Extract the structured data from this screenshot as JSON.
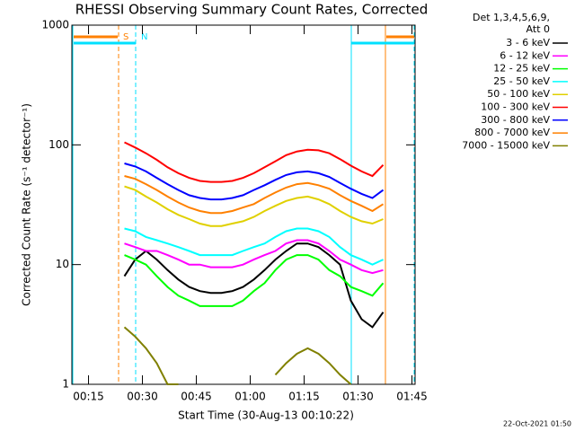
{
  "chart_data": {
    "type": "line",
    "title": "RHESSI Observing Summary Count Rates, Corrected",
    "x_label": "Start Time (30-Aug-13 00:10:22)",
    "y_label": "Corrected Count Rate (s⁻¹ detector⁻¹)",
    "legend_header": [
      "Det 1,3,4,5,6,9,",
      "Att 0"
    ],
    "annotations": [
      {
        "text": "S",
        "color": "#ff8000"
      },
      {
        "text": "N",
        "color": "#00e0ff"
      }
    ],
    "timestamp": "22-Oct-2021 01:50",
    "log_y": true,
    "xlim": [
      10.37,
      105.87
    ],
    "ylim": [
      1,
      1000
    ],
    "xticks": [
      {
        "value": 15,
        "label": "00:15"
      },
      {
        "value": 30,
        "label": "00:30"
      },
      {
        "value": 45,
        "label": "00:45"
      },
      {
        "value": 60,
        "label": "01:00"
      },
      {
        "value": 75,
        "label": "01:15"
      },
      {
        "value": 90,
        "label": "01:30"
      },
      {
        "value": 105,
        "label": "01:45"
      }
    ],
    "yticks": [
      1,
      10,
      100,
      1000
    ],
    "x": [
      25,
      28,
      31,
      34,
      37,
      40,
      43,
      46,
      49,
      52,
      55,
      58,
      61,
      64,
      67,
      70,
      73,
      76,
      79,
      82,
      85,
      88,
      91,
      94,
      97
    ],
    "series": [
      {
        "name": "3 - 6 keV",
        "color": "#000000",
        "values": [
          8,
          11,
          13,
          11,
          9,
          7.5,
          6.5,
          6,
          5.8,
          5.8,
          6,
          6.5,
          7.5,
          9,
          11,
          13,
          15,
          15,
          14,
          12,
          10,
          5,
          3.5,
          3,
          4
        ]
      },
      {
        "name": "6 - 12 keV",
        "color": "#ff00ff",
        "values": [
          15,
          14,
          13,
          13,
          12,
          11,
          10,
          10,
          9.5,
          9.5,
          9.5,
          10,
          11,
          12,
          13,
          15,
          16,
          16,
          15,
          13,
          11,
          10,
          9,
          8.5,
          9
        ]
      },
      {
        "name": "12 - 25 keV",
        "color": "#00ff00",
        "values": [
          12,
          11,
          10,
          8,
          6.5,
          5.5,
          5,
          4.5,
          4.5,
          4.5,
          4.5,
          5,
          6,
          7,
          9,
          11,
          12,
          12,
          11,
          9,
          8,
          6.5,
          6,
          5.5,
          7
        ]
      },
      {
        "name": "25 - 50 keV",
        "color": "#00ffff",
        "values": [
          20,
          19,
          17,
          16,
          15,
          14,
          13,
          12,
          12,
          12,
          12,
          13,
          14,
          15,
          17,
          19,
          20,
          20,
          19,
          17,
          14,
          12,
          11,
          10,
          11
        ]
      },
      {
        "name": "50 - 100 keV",
        "color": "#e0d000",
        "values": [
          45,
          42,
          37,
          33,
          29,
          26,
          24,
          22,
          21,
          21,
          22,
          23,
          25,
          28,
          31,
          34,
          36,
          37,
          35,
          32,
          28,
          25,
          23,
          22,
          24
        ]
      },
      {
        "name": "100 - 300 keV",
        "color": "#ff0000",
        "values": [
          105,
          95,
          85,
          75,
          65,
          58,
          53,
          50,
          49,
          49,
          50,
          53,
          58,
          65,
          73,
          82,
          88,
          91,
          90,
          85,
          76,
          67,
          60,
          55,
          68
        ]
      },
      {
        "name": "300 - 800 keV",
        "color": "#0000ff",
        "values": [
          70,
          66,
          60,
          53,
          47,
          42,
          38,
          36,
          35,
          35,
          36,
          38,
          42,
          46,
          51,
          56,
          59,
          60,
          58,
          54,
          48,
          43,
          39,
          36,
          42
        ]
      },
      {
        "name": "800 - 7000 keV",
        "color": "#ff8000",
        "values": [
          55,
          52,
          47,
          42,
          37,
          33,
          30,
          28,
          27,
          27,
          28,
          30,
          32,
          36,
          40,
          44,
          47,
          48,
          46,
          43,
          38,
          34,
          31,
          28,
          32
        ]
      },
      {
        "name": "7000 - 15000 keV",
        "color": "#808000",
        "values": [
          3,
          2.5,
          2,
          1.5,
          1,
          1,
          null,
          null,
          null,
          null,
          null,
          null,
          null,
          null,
          1.2,
          1.5,
          1.8,
          2,
          1.8,
          1.5,
          1.2,
          1,
          null,
          null,
          null
        ]
      }
    ]
  }
}
